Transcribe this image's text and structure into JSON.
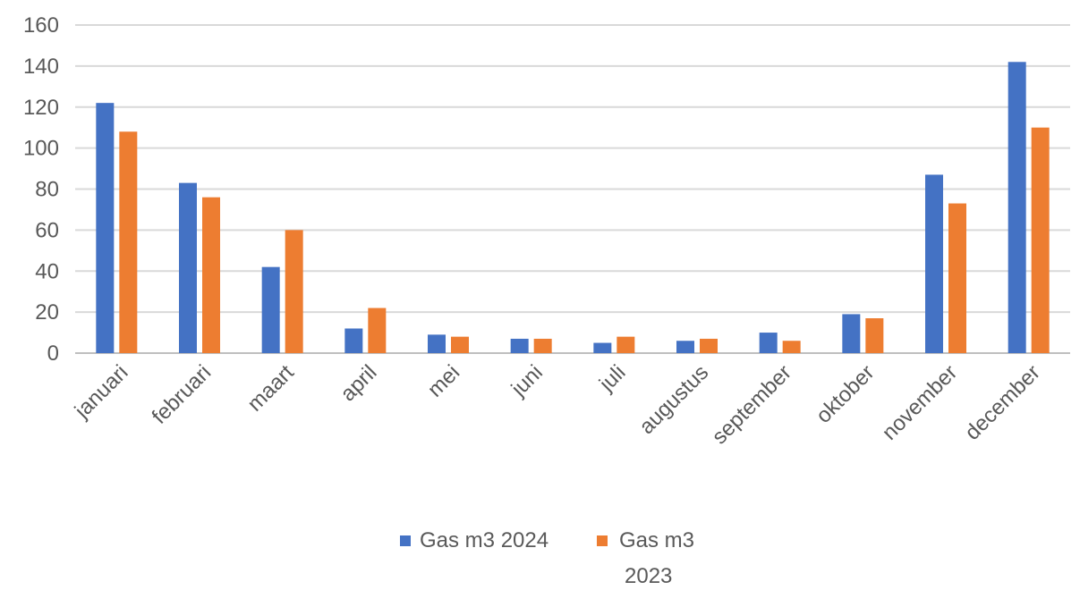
{
  "chart_data": {
    "type": "bar",
    "categories": [
      "januari",
      "februari",
      "maart",
      "april",
      "mei",
      "juni",
      "juli",
      "augustus",
      "september",
      "oktober",
      "november",
      "december"
    ],
    "series": [
      {
        "name": "Gas m3 2024",
        "color": "#4472C4",
        "values": [
          122,
          83,
          42,
          12,
          9,
          7,
          5,
          6,
          10,
          19,
          87,
          142
        ]
      },
      {
        "name": "Gas m3 2023",
        "color": "#ED7D31",
        "values": [
          108,
          76,
          60,
          22,
          8,
          7,
          8,
          7,
          6,
          17,
          73,
          110
        ]
      }
    ],
    "ylim": [
      0,
      160
    ],
    "yticks": [
      0,
      20,
      40,
      60,
      80,
      100,
      120,
      140,
      160
    ],
    "grid": true,
    "legend": "bottom",
    "title": "",
    "xlabel": "",
    "ylabel": ""
  }
}
